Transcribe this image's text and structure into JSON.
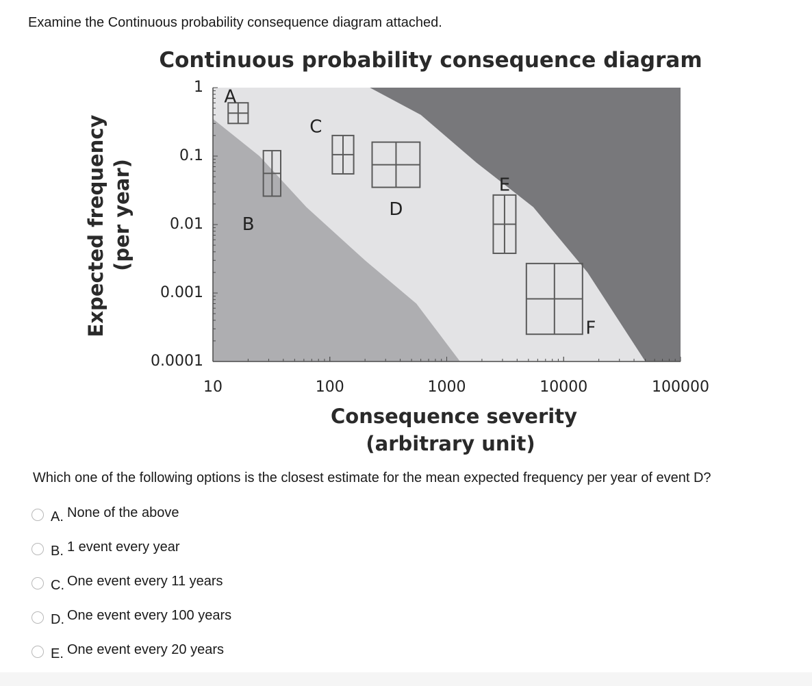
{
  "intro": "Examine the Continuous probability consequence diagram attached.",
  "question": "Which one of the following options is the closest estimate for the mean expected frequency per year of event D?",
  "options": [
    {
      "letter": "A.",
      "text": "None of the above"
    },
    {
      "letter": "B.",
      "text": "1 event every year"
    },
    {
      "letter": "C.",
      "text": "One event every 11 years"
    },
    {
      "letter": "D.",
      "text": "One event every 100 years"
    },
    {
      "letter": "E.",
      "text": "One event every 20 years"
    }
  ],
  "chart_data": {
    "type": "scatter",
    "title": "Continuous probability consequence diagram",
    "xlabel": "Consequence severity\n(arbitrary unit)",
    "ylabel": "Expected frequency\n(per year)",
    "xscale": "log",
    "yscale": "log",
    "xlim": [
      10,
      100000
    ],
    "ylim": [
      0.0001,
      1
    ],
    "x_ticks": [
      10,
      100,
      1000,
      10000,
      100000
    ],
    "x_tick_labels": [
      "10",
      "100",
      "1000",
      "10000",
      "100000"
    ],
    "y_ticks": [
      1,
      0.1,
      0.01,
      0.001,
      0.0001
    ],
    "y_tick_labels": [
      "1",
      "0.1",
      "0.01",
      "0.001",
      "0.0001"
    ],
    "grid": false,
    "colors": {
      "low_region": "#aeaeb1",
      "middle_region": "#e3e3e5",
      "high_region": "#78787b",
      "box_stroke": "#5a5a5a"
    },
    "regions": {
      "lower_boundary": [
        [
          10,
          0.35
        ],
        [
          25,
          0.1
        ],
        [
          63,
          0.018
        ],
        [
          200,
          0.003
        ],
        [
          550,
          0.0007
        ],
        [
          1300,
          0.0001
        ]
      ],
      "upper_boundary": [
        [
          220,
          1
        ],
        [
          600,
          0.4
        ],
        [
          1800,
          0.08
        ],
        [
          5500,
          0.018
        ],
        [
          16000,
          0.002
        ],
        [
          50000,
          0.0001
        ]
      ]
    },
    "events": [
      {
        "name": "A",
        "x_range": [
          13.5,
          20
        ],
        "y_range": [
          0.3,
          0.6
        ]
      },
      {
        "name": "B",
        "x_range": [
          27,
          38
        ],
        "y_range": [
          0.026,
          0.12
        ]
      },
      {
        "name": "C",
        "x_range": [
          105,
          160
        ],
        "y_range": [
          0.055,
          0.2
        ]
      },
      {
        "name": "D",
        "x_range": [
          230,
          590
        ],
        "y_range": [
          0.035,
          0.16
        ]
      },
      {
        "name": "E",
        "x_range": [
          2500,
          3900
        ],
        "y_range": [
          0.0038,
          0.027
        ]
      },
      {
        "name": "F",
        "x_range": [
          4800,
          14500
        ],
        "y_range": [
          0.00025,
          0.0027
        ]
      }
    ]
  }
}
